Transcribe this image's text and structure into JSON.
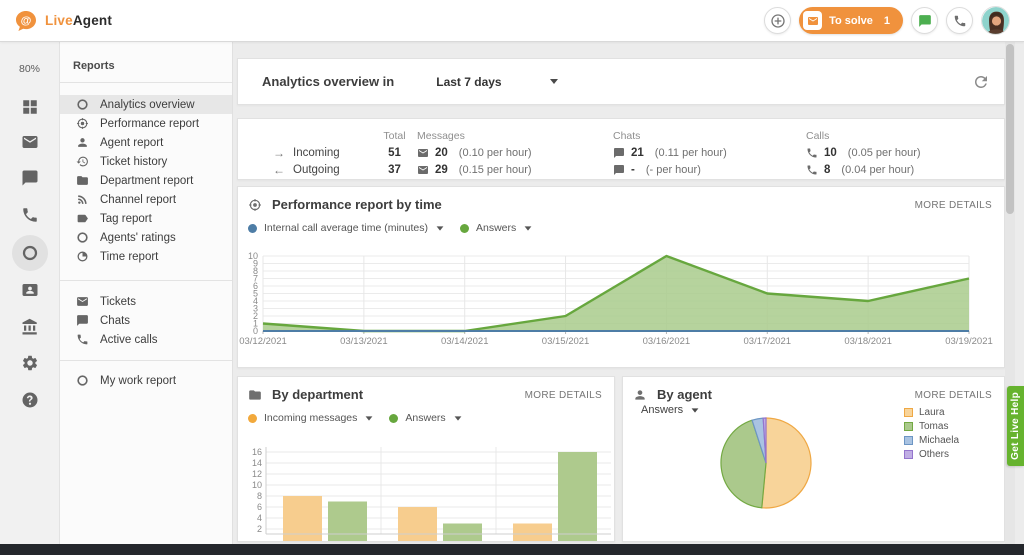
{
  "topbar": {
    "brand_live": "Live",
    "brand_agent": "Agent",
    "to_solve": {
      "label": "To solve",
      "count": "1"
    }
  },
  "rail": {
    "usage": "80%"
  },
  "nav": {
    "title": "Reports",
    "items": [
      {
        "label": "Analytics overview",
        "icon": "ring"
      },
      {
        "label": "Performance report",
        "icon": "target"
      },
      {
        "label": "Agent report",
        "icon": "person"
      },
      {
        "label": "Ticket history",
        "icon": "history"
      },
      {
        "label": "Department report",
        "icon": "folder"
      },
      {
        "label": "Channel report",
        "icon": "rss"
      },
      {
        "label": "Tag report",
        "icon": "tag"
      },
      {
        "label": "Agents' ratings",
        "icon": "ring"
      },
      {
        "label": "Time report",
        "icon": "time"
      },
      {
        "label": "Tickets",
        "icon": "mail"
      },
      {
        "label": "Chats",
        "icon": "chat"
      },
      {
        "label": "Active calls",
        "icon": "phone"
      },
      {
        "label": "My work report",
        "icon": "ring"
      }
    ]
  },
  "overview": {
    "title": "Analytics overview in",
    "range": "Last 7 days"
  },
  "stats": {
    "col_total": "Total",
    "col_messages": "Messages",
    "col_chats": "Chats",
    "col_calls": "Calls",
    "rows": [
      {
        "arrow": "→",
        "label": "Incoming",
        "total": "51",
        "messages": "20",
        "messages_rate": "(0.10 per hour)",
        "chats": "21",
        "chats_rate": "(0.11 per hour)",
        "calls": "10",
        "calls_rate": "(0.05 per hour)"
      },
      {
        "arrow": "←",
        "label": "Outgoing",
        "total": "37",
        "messages": "29",
        "messages_rate": "(0.15 per hour)",
        "chats": "-",
        "chats_rate": "(- per hour)",
        "calls": "8",
        "calls_rate": "(0.04 per hour)"
      }
    ]
  },
  "performance": {
    "title": "Performance report by time",
    "more_details": "MORE DETAILS"
  },
  "department": {
    "title": "By department",
    "more_details": "MORE DETAILS"
  },
  "by_agent": {
    "title": "By agent",
    "more_details": "MORE DETAILS",
    "filter": "Answers"
  },
  "live_help": "Get Live Help",
  "colors": {
    "brand_orange": "#f0923d",
    "help_green": "#66b32e",
    "chat_button_green": "#4caf50"
  },
  "chart_data": [
    {
      "type": "area",
      "title": "Performance report by time",
      "x": [
        "03/12/2021",
        "03/13/2021",
        "03/14/2021",
        "03/15/2021",
        "03/16/2021",
        "03/17/2021",
        "03/18/2021",
        "03/19/2021"
      ],
      "series": [
        {
          "name": "Internal call average time (minutes)",
          "color": "#4e7da6",
          "values": [
            0,
            0,
            0,
            0,
            0,
            0,
            0,
            0
          ]
        },
        {
          "name": "Answers",
          "color": "#67a73e",
          "fill": "#a9cb8c",
          "values": [
            1,
            0,
            0,
            2,
            10,
            5,
            4,
            7
          ]
        }
      ],
      "ylim": [
        0,
        10
      ],
      "yticks": [
        0,
        1,
        2,
        3,
        4,
        5,
        6,
        7,
        8,
        9,
        10
      ],
      "grid": true,
      "legend_position": "top-left"
    },
    {
      "type": "bar",
      "title": "By department",
      "group_count": 3,
      "series": [
        {
          "name": "Incoming messages",
          "color": "#f2a93c",
          "fill": "#f7cd8e",
          "values": [
            8,
            6,
            3
          ]
        },
        {
          "name": "Answers",
          "color": "#67a73e",
          "fill": "#aeca8d",
          "values": [
            7,
            3,
            16
          ]
        }
      ],
      "ylim": [
        0,
        16
      ],
      "yticks": [
        2,
        4,
        6,
        8,
        10,
        12,
        14,
        16
      ],
      "grid": true
    },
    {
      "type": "pie",
      "title": "By agent",
      "labels": [
        "Laura",
        "Tomas",
        "Michaela",
        "Others"
      ],
      "values_pct": [
        51.5,
        43.5,
        4,
        1
      ],
      "colors": [
        "#f8d49a",
        "#abc98c",
        "#a9c3e2",
        "#c0aee4"
      ],
      "border_colors": [
        "#efa844",
        "#73a943",
        "#6d96c4",
        "#9575cd"
      ],
      "legend_position": "right"
    }
  ]
}
